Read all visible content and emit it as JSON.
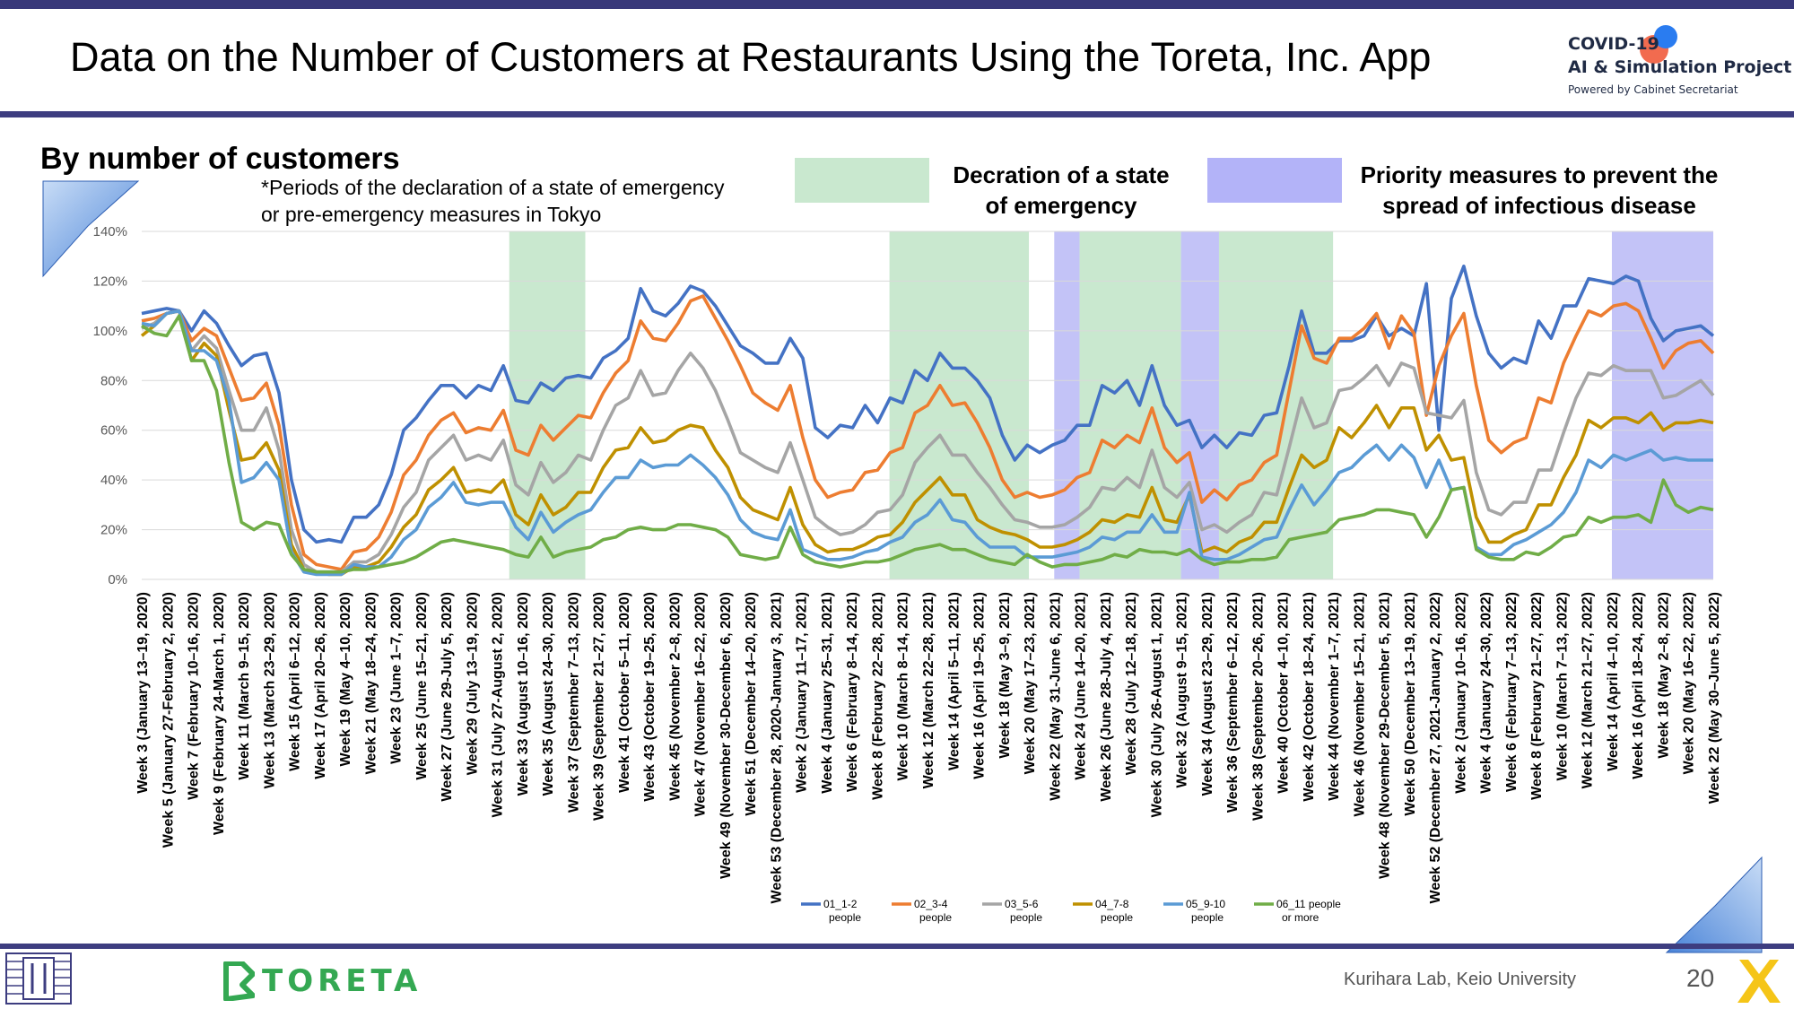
{
  "header": {
    "title": "Data on the Number of Customers at Restaurants Using the Toreta, Inc. App",
    "logo_line1": "COVID-19",
    "logo_line2": "AI & Simulation Project",
    "logo_line3": "Powered by Cabinet Secretariat"
  },
  "subtitle": "By number of customers",
  "note_line1": "*Periods of the declaration of a state of emergency",
  "note_line2": "or pre-emergency measures in Tokyo",
  "legend_emergency_line1": "Decration of a state",
  "legend_emergency_line2": "of emergency",
  "legend_priority_line1": "Priority measures to prevent the",
  "legend_priority_line2": "spread of infectious disease",
  "colors": {
    "emergency": "#c9e8cf",
    "priority": "#c3c3f7",
    "header_bar": "#3d3d80",
    "toreta": "#34a852"
  },
  "footer": {
    "brand": "TORETA",
    "credit": "Kurihara Lab, Keio University",
    "page": "20"
  },
  "chart_data": {
    "type": "line",
    "ylim": [
      0,
      140
    ],
    "y_ticks": [
      "0%",
      "20%",
      "40%",
      "60%",
      "80%",
      "100%",
      "120%",
      "140%"
    ],
    "grid": true,
    "legend_position": "bottom",
    "x_tick_labels": [
      "Week 3 (January 13–19, 2020)",
      "Week 5 (January 27-February 2, 2020)",
      "Week 7 (February 10–16, 2020)",
      "Week 9 (February 24-March 1, 2020)",
      "Week 11 (March 9–15, 2020)",
      "Week 13 (March 23–29, 2020)",
      "Week 15 (April 6–12, 2020)",
      "Week 17 (April 20–26, 2020)",
      "Week 19 (May 4–10, 2020)",
      "Week 21 (May 18–24, 2020)",
      "Week 23 (June 1–7, 2020)",
      "Week 25 (June 15–21, 2020)",
      "Week 27 (June 29-July 5, 2020)",
      "Week 29 (July 13–19, 2020)",
      "Week 31 (July 27-August 2, 2020)",
      "Week 33 (August 10–16, 2020)",
      "Week 35 (August 24–30, 2020)",
      "Week 37 (September 7–13, 2020)",
      "Week 39 (September 21–27, 2020)",
      "Week 41 (October 5–11, 2020)",
      "Week 43 (October 19–25, 2020)",
      "Week 45 (November 2–8, 2020)",
      "Week 47 (November 16–22, 2020)",
      "Week 49 (November 30-December 6, 2020)",
      "Week 51 (December 14–20, 2020)",
      "Week 53 (December 28, 2020-January 3, 2021)",
      "Week 2 (January 11–17, 2021)",
      "Week 4 (January 25–31, 2021)",
      "Week 6 (February 8–14, 2021)",
      "Week 8 (February 22–28, 2021)",
      "Week 10 (March 8–14, 2021)",
      "Week 12 (March 22–28, 2021)",
      "Week 14 (April 5–11, 2021)",
      "Week 16 (April 19–25, 2021)",
      "Week 18 (May 3–9, 2021)",
      "Week 20 (May 17–23, 2021)",
      "Week 22 (May 31-June 6, 2021)",
      "Week 24 (June 14–20, 2021)",
      "Week 26 (June 28-July 4, 2021)",
      "Week 28 (July 12–18, 2021)",
      "Week 30 (July 26-August 1, 2021)",
      "Week 32 (August 9–15, 2021)",
      "Week 34 (August 23–29, 2021)",
      "Week 36 (September 6–12, 2021)",
      "Week 38 (September 20–26, 2021)",
      "Week 40 (October 4–10, 2021)",
      "Week 42 (October 18–24, 2021)",
      "Week 44 (November 1–7, 2021)",
      "Week 46 (November 15–21, 2021)",
      "Week 48 (November 29-December 5, 2021)",
      "Week 50 (December 13–19, 2021)",
      "Week 52 (December 27, 2021-January 2, 2022)",
      "Week 2 (January 10–16, 2022)",
      "Week 4 (January 24–30, 2022)",
      "Week 6 (February 7–13, 2022)",
      "Week 8 (February 21–27, 2022)",
      "Week 10 (March 7–13, 2022)",
      "Week 12 (March 21–27, 2022)",
      "Week 14 (April 4–10, 2022)",
      "Week 16 (April 18–24, 2022)",
      "Week 18 (May 2–8, 2022)",
      "Week 20 (May 16–22, 2022)",
      "Week 22 (May 30–June 5, 2022)"
    ],
    "series": [
      {
        "name": "01_1-2 people",
        "legend_line1": "01_1-2",
        "legend_line2": "people",
        "color": "#4472c4",
        "values": [
          107,
          108,
          109,
          108,
          100,
          108,
          103,
          94,
          86,
          90,
          91,
          75,
          40,
          20,
          15,
          16,
          15,
          25,
          25,
          30,
          42,
          60,
          65,
          72,
          78,
          78,
          73,
          78,
          76,
          86,
          72,
          71,
          79,
          76,
          81,
          82,
          81,
          89,
          92,
          97,
          117,
          108,
          106,
          111,
          118,
          116,
          110,
          102,
          94,
          91,
          87,
          87,
          97,
          89,
          61,
          57,
          62,
          61,
          70,
          63,
          73,
          71,
          84,
          80,
          91,
          85,
          85,
          80,
          73,
          58,
          48,
          54,
          51,
          54,
          56,
          62,
          62,
          78,
          75,
          80,
          70,
          86,
          70,
          62,
          64,
          53,
          58,
          53,
          59,
          58,
          66,
          67,
          86,
          108,
          91,
          91,
          96,
          96,
          98,
          106,
          98,
          101,
          98,
          119,
          60,
          113,
          126,
          106,
          91,
          85,
          89,
          87,
          104,
          97,
          110,
          110,
          121,
          120,
          119,
          122,
          120,
          105,
          96,
          100,
          101,
          102,
          98
        ]
      },
      {
        "name": "02_3-4 people",
        "legend_line1": "02_3-4",
        "legend_line2": "people",
        "color": "#ed7d31",
        "values": [
          104,
          105,
          107,
          108,
          96,
          101,
          98,
          85,
          72,
          73,
          79,
          62,
          30,
          10,
          6,
          5,
          4,
          11,
          12,
          17,
          27,
          42,
          48,
          58,
          64,
          67,
          59,
          61,
          60,
          68,
          52,
          50,
          62,
          56,
          61,
          66,
          65,
          75,
          83,
          88,
          104,
          97,
          96,
          103,
          112,
          114,
          105,
          96,
          86,
          75,
          71,
          68,
          78,
          57,
          40,
          33,
          35,
          36,
          43,
          44,
          51,
          53,
          67,
          70,
          78,
          70,
          71,
          63,
          53,
          40,
          33,
          35,
          33,
          34,
          36,
          41,
          43,
          56,
          53,
          58,
          55,
          69,
          53,
          47,
          51,
          31,
          36,
          32,
          38,
          40,
          47,
          50,
          76,
          102,
          89,
          87,
          97,
          97,
          101,
          107,
          93,
          106,
          99,
          66,
          86,
          98,
          107,
          78,
          56,
          51,
          55,
          57,
          73,
          71,
          87,
          98,
          108,
          106,
          110,
          111,
          108,
          97,
          85,
          92,
          95,
          96,
          91
        ]
      },
      {
        "name": "03_5-6 people",
        "legend_line1": "03_5-6",
        "legend_line2": "people",
        "color": "#a5a5a5",
        "values": [
          101,
          103,
          107,
          108,
          92,
          98,
          93,
          76,
          60,
          60,
          69,
          52,
          20,
          6,
          3,
          3,
          3,
          7,
          7,
          10,
          18,
          29,
          35,
          48,
          53,
          58,
          48,
          50,
          48,
          56,
          38,
          34,
          47,
          39,
          43,
          50,
          48,
          60,
          70,
          73,
          84,
          74,
          75,
          84,
          91,
          85,
          76,
          64,
          51,
          48,
          45,
          43,
          55,
          40,
          25,
          21,
          18,
          19,
          22,
          27,
          28,
          34,
          47,
          53,
          58,
          50,
          50,
          43,
          37,
          30,
          24,
          23,
          21,
          21,
          22,
          25,
          29,
          37,
          36,
          41,
          37,
          52,
          37,
          33,
          39,
          20,
          22,
          19,
          23,
          26,
          35,
          34,
          53,
          73,
          61,
          63,
          76,
          77,
          81,
          86,
          78,
          87,
          85,
          67,
          66,
          65,
          72,
          43,
          28,
          26,
          31,
          31,
          44,
          44,
          59,
          73,
          83,
          82,
          86,
          84,
          84,
          84,
          73,
          74,
          77,
          80,
          74
        ]
      },
      {
        "name": "04_7-8 people",
        "legend_line1": "04_7-8",
        "legend_line2": "people",
        "color": "#bf9000",
        "values": [
          98,
          102,
          107,
          108,
          88,
          95,
          90,
          68,
          48,
          49,
          55,
          44,
          14,
          4,
          3,
          2,
          2,
          5,
          5,
          7,
          13,
          21,
          26,
          36,
          40,
          45,
          35,
          36,
          35,
          40,
          26,
          22,
          34,
          26,
          29,
          35,
          35,
          45,
          52,
          53,
          61,
          55,
          56,
          60,
          62,
          61,
          52,
          45,
          33,
          28,
          26,
          24,
          37,
          22,
          14,
          11,
          12,
          12,
          14,
          17,
          18,
          23,
          31,
          36,
          41,
          34,
          34,
          24,
          21,
          19,
          18,
          16,
          13,
          13,
          14,
          16,
          19,
          24,
          23,
          26,
          25,
          37,
          24,
          23,
          34,
          11,
          13,
          11,
          15,
          17,
          23,
          23,
          37,
          50,
          45,
          48,
          61,
          57,
          63,
          70,
          61,
          69,
          69,
          52,
          58,
          48,
          49,
          25,
          15,
          15,
          18,
          20,
          30,
          30,
          41,
          50,
          64,
          61,
          65,
          65,
          63,
          67,
          60,
          63,
          63,
          64,
          63
        ]
      },
      {
        "name": "05_9-10 people",
        "legend_line1": "05_9-10",
        "legend_line2": "people",
        "color": "#5b9bd5",
        "values": [
          103,
          102,
          107,
          108,
          92,
          92,
          88,
          72,
          39,
          41,
          47,
          40,
          11,
          3,
          2,
          2,
          2,
          6,
          5,
          5,
          9,
          16,
          20,
          29,
          33,
          39,
          31,
          30,
          31,
          31,
          21,
          16,
          27,
          19,
          23,
          26,
          28,
          35,
          41,
          41,
          48,
          45,
          46,
          46,
          50,
          46,
          41,
          34,
          24,
          19,
          17,
          16,
          28,
          12,
          10,
          8,
          8,
          9,
          11,
          12,
          15,
          17,
          23,
          26,
          32,
          24,
          23,
          17,
          13,
          13,
          13,
          9,
          9,
          9,
          10,
          11,
          13,
          17,
          16,
          19,
          19,
          26,
          19,
          19,
          35,
          9,
          8,
          8,
          10,
          13,
          16,
          17,
          28,
          38,
          30,
          36,
          43,
          45,
          50,
          54,
          48,
          54,
          49,
          37,
          48,
          36,
          37,
          13,
          10,
          10,
          14,
          16,
          19,
          22,
          27,
          35,
          48,
          45,
          50,
          48,
          50,
          52,
          48,
          49,
          48,
          48,
          48
        ]
      },
      {
        "name": "06_11 people or more",
        "legend_line1": "06_11 people",
        "legend_line2": "or more",
        "color": "#70ad47",
        "values": [
          102,
          99,
          98,
          106,
          88,
          88,
          76,
          47,
          23,
          20,
          23,
          22,
          10,
          4,
          3,
          3,
          3,
          4,
          4,
          5,
          6,
          7,
          9,
          12,
          15,
          16,
          15,
          14,
          13,
          12,
          10,
          9,
          17,
          9,
          11,
          12,
          13,
          16,
          17,
          20,
          21,
          20,
          20,
          22,
          22,
          21,
          20,
          17,
          10,
          9,
          8,
          9,
          21,
          10,
          7,
          6,
          5,
          6,
          7,
          7,
          8,
          10,
          12,
          13,
          14,
          12,
          12,
          10,
          8,
          7,
          6,
          10,
          7,
          5,
          6,
          6,
          7,
          8,
          10,
          9,
          12,
          11,
          11,
          10,
          12,
          8,
          6,
          7,
          7,
          8,
          8,
          9,
          16,
          17,
          18,
          19,
          24,
          25,
          26,
          28,
          28,
          27,
          26,
          17,
          25,
          36,
          37,
          12,
          9,
          8,
          8,
          11,
          10,
          13,
          17,
          18,
          25,
          23,
          25,
          25,
          26,
          23,
          40,
          30,
          27,
          29,
          28
        ]
      }
    ],
    "shaded_periods": [
      {
        "kind": "emergency",
        "start": 14.5,
        "end": 17.5
      },
      {
        "kind": "emergency",
        "start": 29.5,
        "end": 35
      },
      {
        "kind": "priority",
        "start": 36,
        "end": 37
      },
      {
        "kind": "emergency",
        "start": 37,
        "end": 41
      },
      {
        "kind": "priority",
        "start": 41,
        "end": 42.5
      },
      {
        "kind": "emergency",
        "start": 42.5,
        "end": 47
      },
      {
        "kind": "priority",
        "start": 58,
        "end": 62
      }
    ]
  }
}
